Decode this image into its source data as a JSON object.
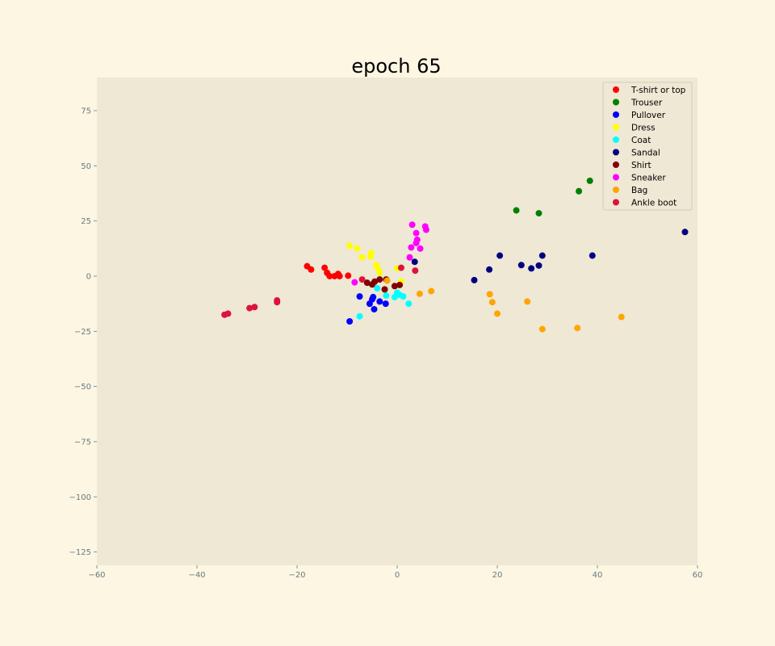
{
  "chart_data": {
    "type": "scatter",
    "title": "epoch 65",
    "xlabel": "",
    "ylabel": "",
    "xlim": [
      -60,
      60
    ],
    "ylim": [
      -131,
      90
    ],
    "xticks": [
      -60,
      -40,
      -20,
      0,
      20,
      40,
      60
    ],
    "yticks": [
      75,
      50,
      25,
      0,
      -25,
      -50,
      -75,
      -100,
      -125
    ],
    "xtick_labels": [
      "−60",
      "−40",
      "−20",
      "0",
      "20",
      "40",
      "60"
    ],
    "ytick_labels": [
      "75",
      "50",
      "25",
      "0",
      "−25",
      "−50",
      "−75",
      "−100",
      "−125"
    ],
    "grid": false,
    "legend_position": "top-right",
    "series": [
      {
        "name": "T-shirt or top",
        "color": "#ff0000",
        "points": [
          [
            -18,
            4.5
          ],
          [
            -17.2,
            3
          ],
          [
            -14.5,
            3.8
          ],
          [
            -14,
            1.5
          ],
          [
            -13.5,
            0
          ],
          [
            -12.5,
            0
          ],
          [
            -11.8,
            1
          ],
          [
            -11.5,
            0
          ],
          [
            -9.8,
            0.2
          ]
        ]
      },
      {
        "name": "Trouser",
        "color": "#008000",
        "points": [
          [
            23.8,
            29.8
          ],
          [
            28.3,
            28.5
          ],
          [
            36.3,
            38.5
          ],
          [
            38.5,
            43.2
          ],
          [
            49.5,
            52.3
          ]
        ]
      },
      {
        "name": "Pullover",
        "color": "#0000ff",
        "points": [
          [
            -9.5,
            -20.5
          ],
          [
            -7.5,
            -9.2
          ],
          [
            -5.5,
            -12.5
          ],
          [
            -5,
            -10.5
          ],
          [
            -4.8,
            -9.5
          ],
          [
            -4.6,
            -15
          ],
          [
            -3.5,
            -11.5
          ],
          [
            -2.3,
            -12.5
          ]
        ]
      },
      {
        "name": "Dress",
        "color": "#ffff00",
        "points": [
          [
            -9.5,
            13.8
          ],
          [
            -8,
            12.5
          ],
          [
            -7,
            8.5
          ],
          [
            -5.3,
            8.8
          ],
          [
            -5.2,
            10.5
          ],
          [
            -4.2,
            5
          ],
          [
            -3.8,
            3.2
          ],
          [
            -3.5,
            1.5
          ],
          [
            0,
            3.5
          ],
          [
            0.8,
            -2.5
          ]
        ]
      },
      {
        "name": "Coat",
        "color": "#00ffff",
        "points": [
          [
            -7.5,
            -18.2
          ],
          [
            -4,
            -5.5
          ],
          [
            -2.2,
            -8.8
          ],
          [
            -0.5,
            -9.5
          ],
          [
            0,
            -7.5
          ],
          [
            0.5,
            -8.5
          ],
          [
            1.2,
            -9.2
          ],
          [
            2.3,
            -12.5
          ]
        ]
      },
      {
        "name": "Sandal",
        "color": "#000080",
        "points": [
          [
            15.4,
            -1.8
          ],
          [
            18.4,
            3
          ],
          [
            20.5,
            9.3
          ],
          [
            24.8,
            5
          ],
          [
            26.8,
            3.5
          ],
          [
            28.3,
            4.8
          ],
          [
            29,
            9.3
          ],
          [
            39,
            9.3
          ],
          [
            57.5,
            20
          ],
          [
            3.5,
            6.5
          ]
        ]
      },
      {
        "name": "Shirt",
        "color": "#800000",
        "points": [
          [
            -6,
            -3
          ],
          [
            -5,
            -3.8
          ],
          [
            -4.5,
            -2.5
          ],
          [
            -3.5,
            -1.5
          ],
          [
            -2.5,
            -6
          ],
          [
            -2.2,
            -1.5
          ],
          [
            -0.5,
            -4.5
          ],
          [
            0.5,
            -4
          ]
        ]
      },
      {
        "name": "Sneaker",
        "color": "#ff00ff",
        "points": [
          [
            -8.5,
            -2.8
          ],
          [
            2.5,
            8.5
          ],
          [
            2.8,
            13
          ],
          [
            3,
            23.3
          ],
          [
            3.8,
            19.5
          ],
          [
            3.8,
            15
          ],
          [
            4,
            16.5
          ],
          [
            4.6,
            12.5
          ],
          [
            5.6,
            22.5
          ],
          [
            5.8,
            21
          ]
        ]
      },
      {
        "name": "Bag",
        "color": "#ffa500",
        "points": [
          [
            -2,
            -2
          ],
          [
            4.5,
            -8
          ],
          [
            6.8,
            -6.8
          ],
          [
            18.5,
            -8.2
          ],
          [
            19,
            -11.8
          ],
          [
            20,
            -17
          ],
          [
            26,
            -11.5
          ],
          [
            29,
            -24
          ],
          [
            36,
            -23.5
          ],
          [
            44.8,
            -18.5
          ]
        ]
      },
      {
        "name": "Ankle boot",
        "color": "#dc143c",
        "points": [
          [
            -34.5,
            -17.5
          ],
          [
            -33.8,
            -17
          ],
          [
            -29.5,
            -14.5
          ],
          [
            -28.5,
            -14
          ],
          [
            -24,
            -11
          ],
          [
            -24,
            -11.8
          ],
          [
            -7,
            -1.5
          ],
          [
            0.8,
            3.8
          ],
          [
            3.6,
            2.5
          ]
        ]
      }
    ],
    "faint_points": {
      "color": "#bcd4a2",
      "points": [
        [
          45.5,
          45
        ],
        [
          45.5,
          50.5
        ],
        [
          55.8,
          62
        ]
      ]
    }
  }
}
